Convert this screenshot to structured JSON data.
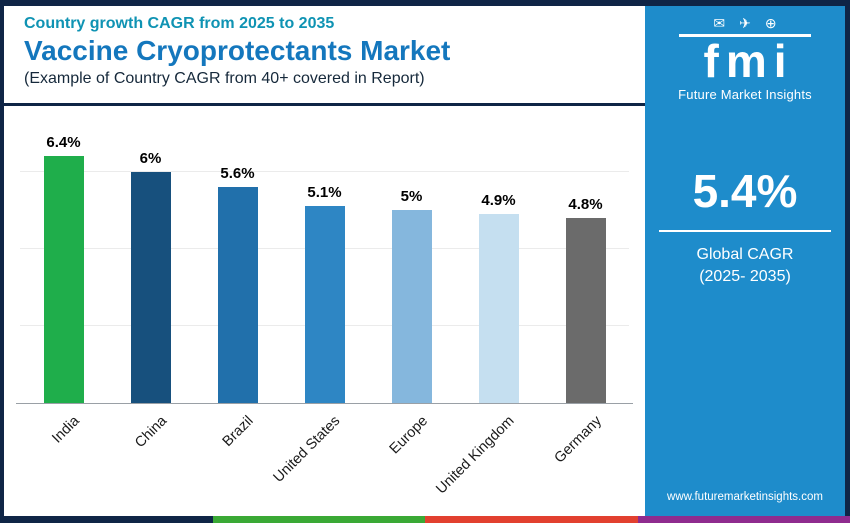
{
  "header": {
    "eyebrow": "Country growth CAGR from 2025 to 2035",
    "title": "Vaccine Cryoprotectants Market",
    "subtitle": "(Example of Country CAGR from 40+ covered in Report)"
  },
  "side_panel": {
    "logo": {
      "text": "fmi",
      "caption": "Future Market Insights",
      "icons": [
        {
          "name": "message-icon",
          "glyph": "✉"
        },
        {
          "name": "plane-icon",
          "glyph": "✈"
        },
        {
          "name": "globe-icon",
          "glyph": "⊕"
        }
      ]
    },
    "stat": {
      "value": "5.4%",
      "label_line1": "Global CAGR",
      "label_line2": "(2025- 2035)"
    },
    "website": "www.futuremarketinsights.com",
    "background": "#1e8ccb"
  },
  "chart_data": {
    "type": "bar",
    "title": "Vaccine Cryoprotectants Market — Country growth CAGR from 2025 to 2035",
    "categories": [
      "India",
      "China",
      "Brazil",
      "United States",
      "Europe",
      "United Kingdom",
      "Germany"
    ],
    "values": [
      6.4,
      6,
      5.6,
      5.1,
      5,
      4.9,
      4.8
    ],
    "value_labels": [
      "6.4%",
      "6%",
      "5.6%",
      "5.1%",
      "5%",
      "4.9%",
      "4.8%"
    ],
    "bar_colors": [
      "#1fae4b",
      "#17507d",
      "#2170ab",
      "#2e86c4",
      "#85b7dd",
      "#c5dff0",
      "#6b6b6b"
    ],
    "xlabel": "",
    "ylabel": "",
    "ylim": [
      0,
      7
    ],
    "grid": true,
    "gridline_values": [
      2,
      4,
      6
    ],
    "legend": false
  },
  "colors": {
    "frame_navy": "#0f2546",
    "title_blue": "#1477bd",
    "eyebrow_teal": "#0f93b3",
    "panel_blue": "#1e8ccb"
  },
  "footer_stripe_colors": [
    "#0f2546",
    "#3aa935",
    "#e2402f",
    "#8f2b8e"
  ]
}
